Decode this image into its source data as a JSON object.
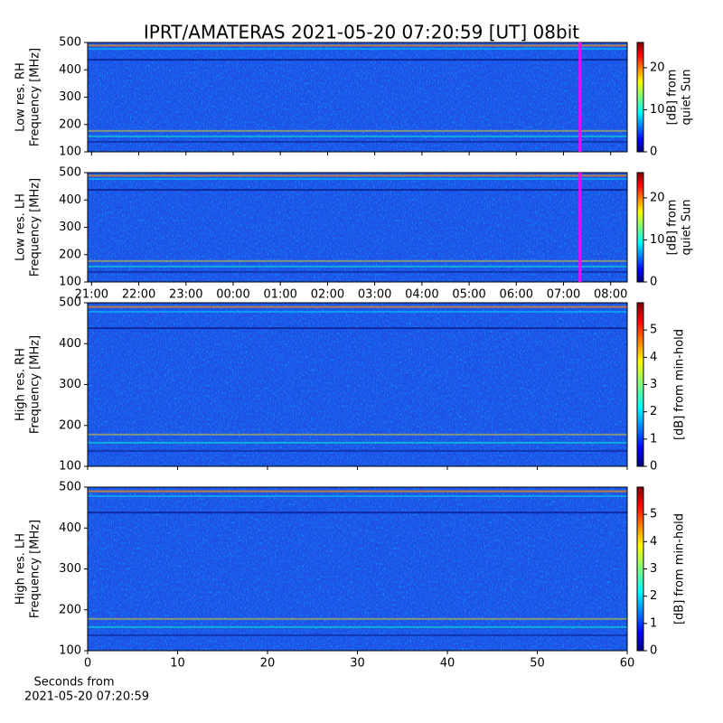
{
  "title": "IPRT/AMATERAS 2021-05-20 07:20:59 [UT]   08bit",
  "chart_data": [
    {
      "type": "heatmap",
      "ylabel": [
        "Low res. RH",
        "Frequency [MHz]"
      ],
      "ylim": [
        100,
        500
      ],
      "yticks": [
        100,
        200,
        300,
        400,
        500
      ],
      "xlim": [
        "20:55",
        "08:21"
      ],
      "xticks": [
        "21:00",
        "22:00",
        "23:00",
        "00:00",
        "01:00",
        "02:00",
        "03:00",
        "04:00",
        "05:00",
        "06:00",
        "07:00",
        "08:00"
      ],
      "show_xtick_labels": false,
      "marker": {
        "x": "07:21",
        "color": "#ff00ff"
      },
      "colorbar": {
        "label": [
          "[dB] from",
          "quiet Sun"
        ],
        "lim": [
          0,
          26
        ],
        "ticks": [
          0,
          10,
          20
        ]
      }
    },
    {
      "type": "heatmap",
      "ylabel": [
        "Low res. LH",
        "Frequency [MHz]"
      ],
      "ylim": [
        100,
        500
      ],
      "yticks": [
        100,
        200,
        300,
        400,
        500
      ],
      "xlim": [
        "20:55",
        "08:21"
      ],
      "xticks": [
        "21:00",
        "22:00",
        "23:00",
        "00:00",
        "01:00",
        "02:00",
        "03:00",
        "04:00",
        "05:00",
        "06:00",
        "07:00",
        "08:00"
      ],
      "show_xtick_labels": true,
      "marker": {
        "x": "07:21",
        "color": "#ff00ff"
      },
      "colorbar": {
        "label": [
          "[dB] from",
          "quiet Sun"
        ],
        "lim": [
          0,
          26
        ],
        "ticks": [
          0,
          10,
          20
        ]
      }
    },
    {
      "type": "heatmap",
      "ylabel": [
        "High res. RH",
        "Frequency [MHz]"
      ],
      "ylim": [
        100,
        500
      ],
      "yticks": [
        100,
        200,
        300,
        400,
        500
      ],
      "xlim": [
        0,
        60
      ],
      "xticks": [
        0,
        10,
        20,
        30,
        40,
        50,
        60
      ],
      "show_xtick_labels": false,
      "colorbar": {
        "label": [
          "[dB] from min-hold"
        ],
        "lim": [
          0,
          6
        ],
        "ticks": [
          0,
          1,
          2,
          3,
          4,
          5
        ]
      }
    },
    {
      "type": "heatmap",
      "ylabel": [
        "High res. LH",
        "Frequency [MHz]"
      ],
      "ylim": [
        100,
        500
      ],
      "yticks": [
        100,
        200,
        300,
        400,
        500
      ],
      "xlim": [
        0,
        60
      ],
      "xticks": [
        0,
        10,
        20,
        30,
        40,
        50,
        60
      ],
      "show_xtick_labels": true,
      "xlabel": [
        "Seconds from",
        "2021-05-20 07:20:59"
      ],
      "colorbar": {
        "label": [
          "[dB] from min-hold"
        ],
        "lim": [
          0,
          6
        ],
        "ticks": [
          0,
          1,
          2,
          3,
          4,
          5
        ]
      }
    }
  ]
}
